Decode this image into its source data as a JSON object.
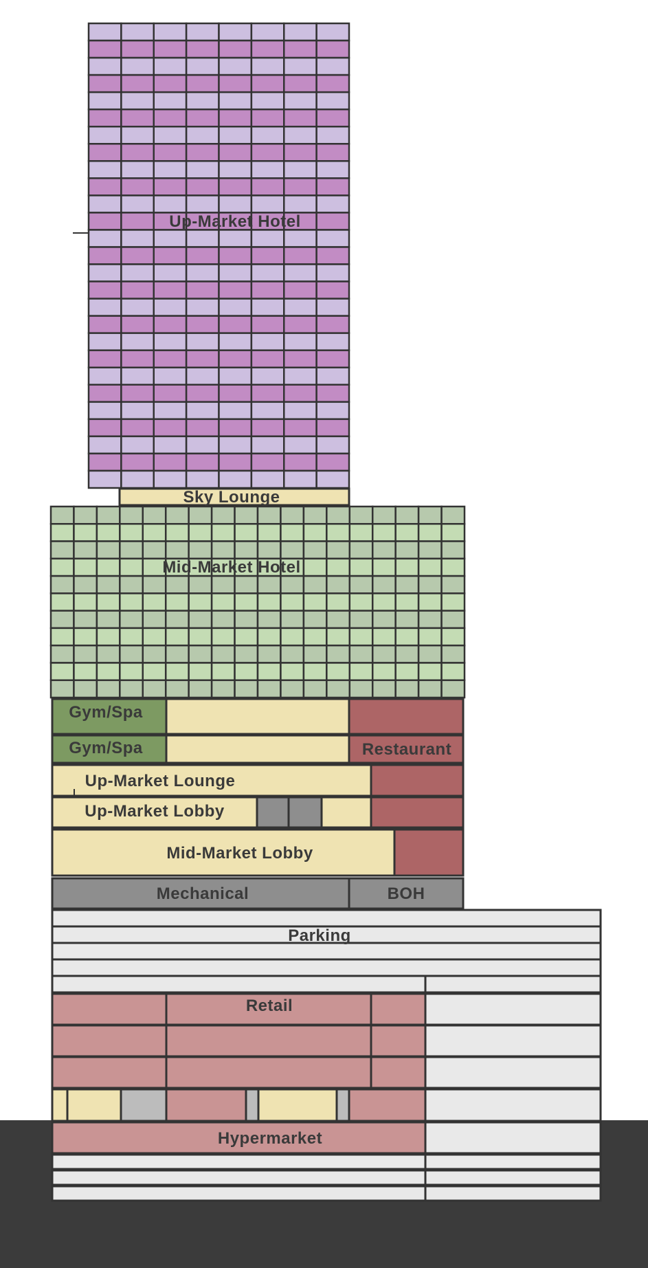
{
  "labels": {
    "up_market_hotel": "Up-Market Hotel",
    "sky_lounge": "Sky Lounge",
    "mid_market_hotel": "Mid-Market Hotel",
    "gym_spa_1": "Gym/Spa",
    "gym_spa_2": "Gym/Spa",
    "restaurant": "Restaurant",
    "up_market_lounge": "Up-Market Lounge",
    "up_market_lobby": "Up-Market Lobby",
    "mid_market_lobby": "Mid-Market Lobby",
    "mechanical": "Mechanical",
    "boh": "BOH",
    "parking": "Parking",
    "retail": "Retail",
    "hypermarket": "Hypermarket"
  },
  "colors": {
    "up_market_hotel_a": "#cdbfe0",
    "up_market_hotel_b": "#c28cc4",
    "mid_market_hotel_a": "#b7c9ad",
    "mid_market_hotel_b": "#c4dcb4",
    "cream": "#efe3b2",
    "gym": "#7d9a62",
    "restaurant": "#ad6566",
    "retail": "#c99494",
    "mechanical": "#8e8e8e",
    "parking": "#e9e9e9",
    "service": "#bcbcbc",
    "ground": "#3b3b3b",
    "outline": "#333333"
  }
}
